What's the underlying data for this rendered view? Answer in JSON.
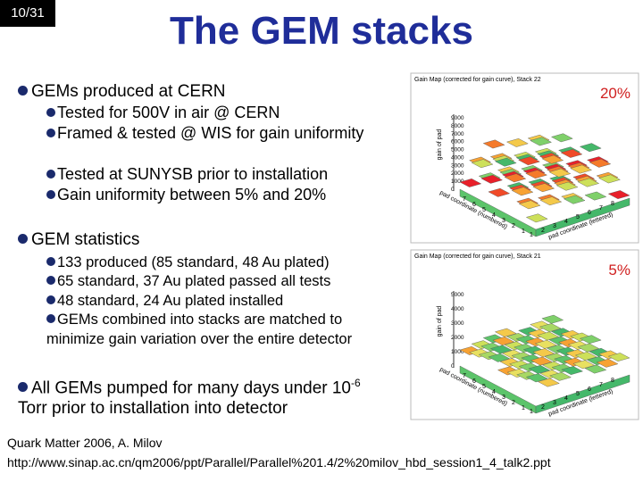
{
  "slide_number": "10/31",
  "title": "The GEM stacks",
  "bullets": [
    {
      "text": "GEMs produced at CERN",
      "sub": [
        "Tested for 500V in air @ CERN",
        "Framed & tested @ WIS for gain uniformity",
        "Tested at SUNYSB prior to installation",
        "Gain uniformity between 5% and 20%"
      ]
    },
    {
      "text": "GEM statistics",
      "sub": [
        "133 produced (85 standard, 48 Au plated)",
        "65 standard, 37 Au plated passed all tests",
        "48 standard, 24 Au plated installed",
        "GEMs combined into stacks are matched to minimize gain variation over the entire detector"
      ]
    }
  ],
  "last_bullet": {
    "before": "All GEMs pumped for many days under 10",
    "sup": "-6",
    "after": "Torr prior to installation into detector"
  },
  "plots": [
    {
      "title": "Gain Map (corrected for gain curve), Stack 22",
      "label": "20%",
      "z_axis": "gain of pad",
      "zticks": [
        "9000",
        "8000",
        "7000",
        "6000",
        "5000",
        "4000",
        "3000",
        "2000",
        "1000",
        "0"
      ],
      "y_axis": "pad coordinate (numbered)",
      "yticks": [
        "7",
        "6",
        "5",
        "4",
        "3",
        "2",
        "1"
      ],
      "x_axis": "pad coordinate (lettered)",
      "xticks": [
        "1",
        "2",
        "3",
        "4",
        "5",
        "6",
        "7",
        "8"
      ]
    },
    {
      "title": "Gain Map (corrected for gain curve), Stack 21",
      "label": "5%",
      "z_axis": "gain of pad",
      "zticks": [
        "5000",
        "4000",
        "3000",
        "2000",
        "1000",
        "0"
      ],
      "y_axis": "pad coordinate (numbered)",
      "yticks": [
        "7",
        "6",
        "5",
        "4",
        "3",
        "2",
        "1"
      ],
      "x_axis": "pad coordinate (lettered)",
      "xticks": [
        "1",
        "2",
        "3",
        "4",
        "5",
        "6",
        "7",
        "8"
      ]
    }
  ],
  "footer": [
    "Quark Matter 2006, A. Milov",
    "http://www.sinap.ac.cn/qm2006/ppt/Parallel/Parallel%201.4/2%20milov_hbd_session1_4_talk2.ppt"
  ]
}
